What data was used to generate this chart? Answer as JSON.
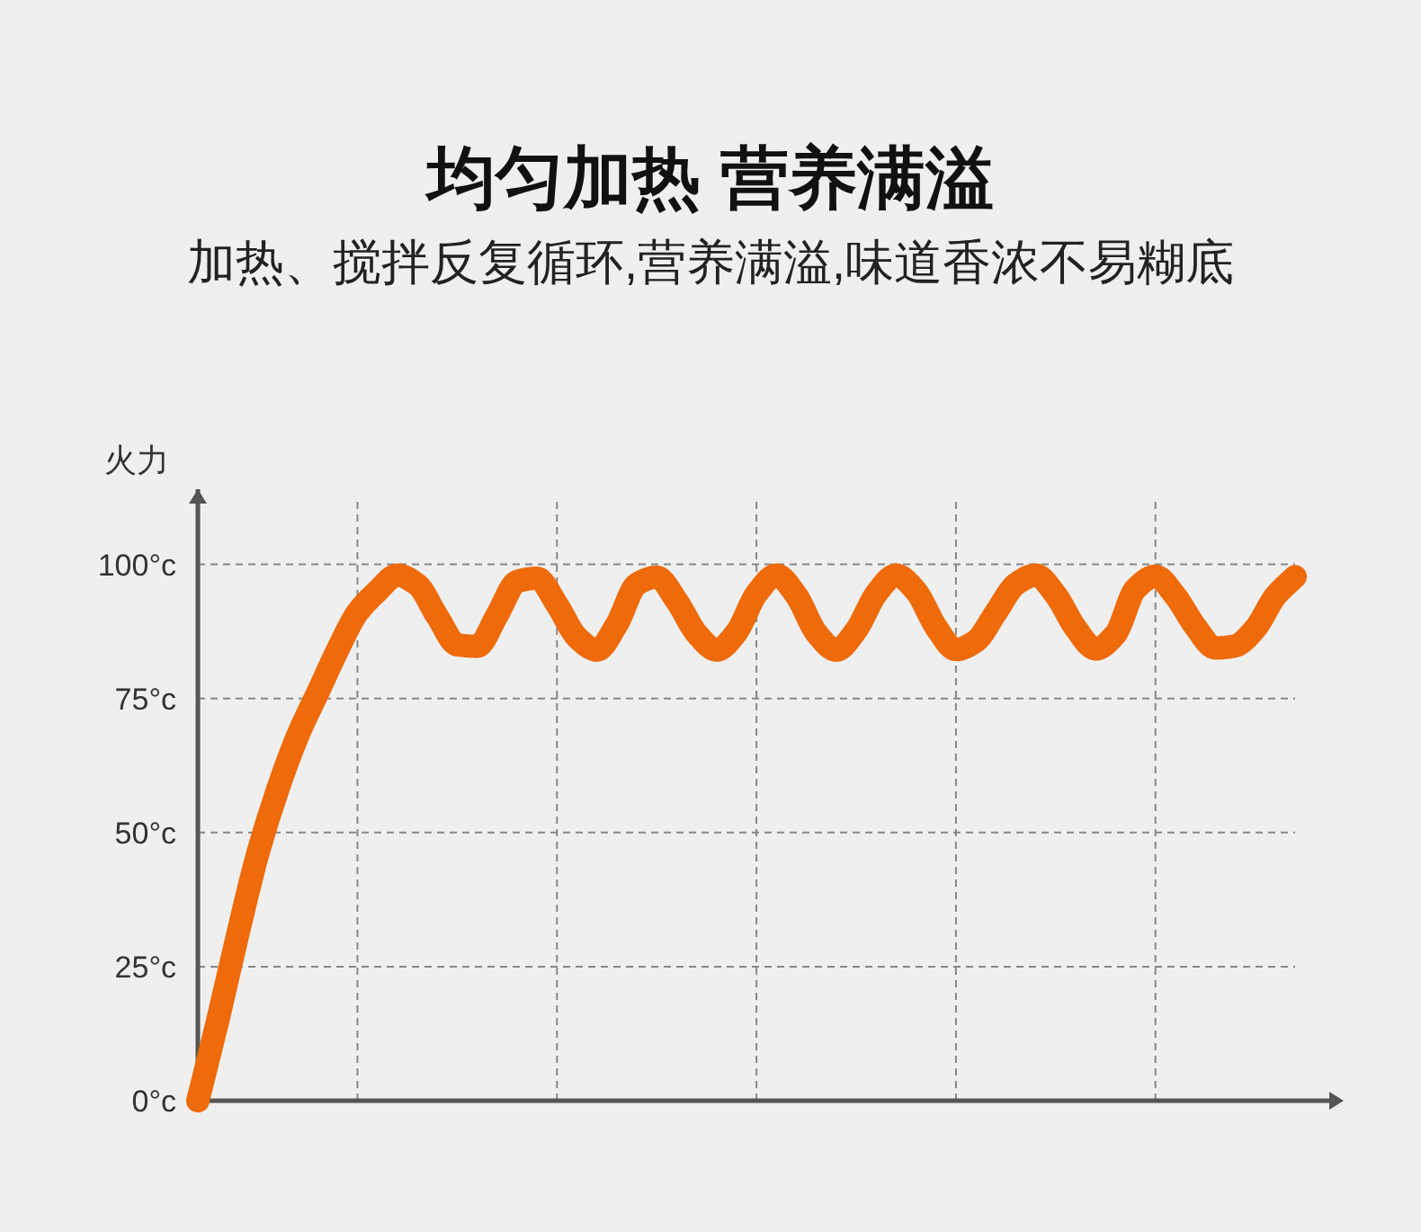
{
  "chart_data": {
    "type": "line",
    "title": "均匀加热 营养满溢",
    "subtitle": "加热、搅拌反复循环,营养满溢,味道香浓不易糊底",
    "ylabel": "火力",
    "categories": [
      null,
      null,
      null,
      null,
      null,
      null,
      null,
      null,
      null,
      null,
      null,
      null,
      null,
      null,
      null,
      null,
      null,
      null,
      null,
      null,
      null,
      null,
      null,
      null,
      null,
      null,
      null,
      null,
      null,
      null,
      null,
      null,
      null,
      null,
      null,
      null,
      null,
      null,
      null,
      null,
      null,
      null,
      null,
      null,
      null,
      null,
      null,
      null,
      null,
      null,
      null,
      null,
      null,
      null,
      null,
      null
    ],
    "ylim": [
      0,
      114
    ],
    "yticks": [
      {
        "value": 0,
        "label": "0°c"
      },
      {
        "value": 25,
        "label": "25°c"
      },
      {
        "value": 50,
        "label": "50°c"
      },
      {
        "value": 75,
        "label": "75°c"
      },
      {
        "value": 100,
        "label": "100°c"
      }
    ],
    "grid": true,
    "series": [
      {
        "color": "#ee6a0a",
        "values": [
          0,
          15,
          31,
          46,
          58,
          68,
          76,
          84,
          91,
          95,
          98,
          96.2,
          90.3,
          85,
          84.7,
          90.5,
          96.8,
          97.4,
          92.5,
          86.4,
          84,
          88.8,
          96.3,
          97.6,
          93.2,
          87.1,
          84,
          87.3,
          94.5,
          98,
          94.2,
          87.2,
          84,
          87.7,
          94.5,
          98,
          95,
          88.3,
          84.1,
          85.7,
          91,
          96.3,
          98,
          94.3,
          88.1,
          84.2,
          87,
          95.4,
          97.8,
          94.1,
          88.4,
          84.4,
          84.8,
          88,
          94,
          97.7
        ]
      }
    ]
  }
}
